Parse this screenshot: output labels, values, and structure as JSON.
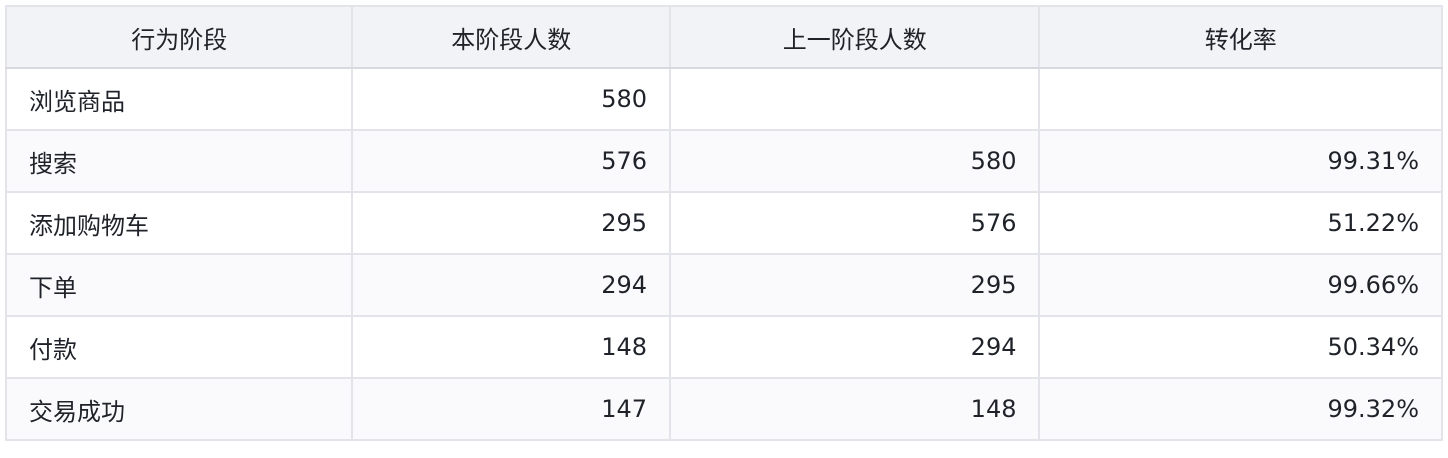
{
  "table": {
    "headers": [
      "行为阶段",
      "本阶段人数",
      "上一阶段人数",
      "转化率"
    ],
    "rows": [
      [
        "浏览商品",
        "580",
        "",
        ""
      ],
      [
        "搜索",
        "576",
        "580",
        "99.31%"
      ],
      [
        "添加购物车",
        "295",
        "576",
        "51.22%"
      ],
      [
        "下单",
        "294",
        "295",
        "99.66%"
      ],
      [
        "付款",
        "148",
        "294",
        "50.34%"
      ],
      [
        "交易成功",
        "147",
        "148",
        "99.32%"
      ]
    ]
  }
}
